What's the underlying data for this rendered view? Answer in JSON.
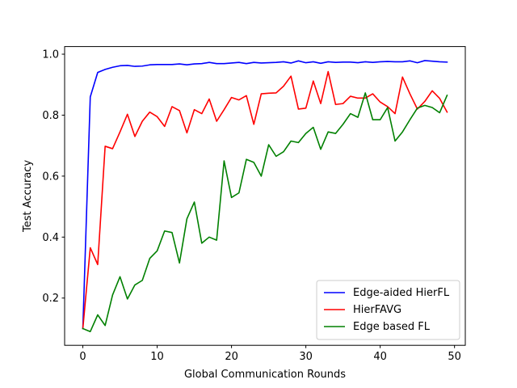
{
  "chart_data": {
    "type": "line",
    "xlabel": "Global Communication Rounds",
    "ylabel": "Test Accuracy",
    "xlim": [
      -2.45,
      51.45
    ],
    "ylim": [
      0.045,
      1.025
    ],
    "xticks": [
      0,
      10,
      20,
      30,
      40,
      50
    ],
    "yticks": [
      0.2,
      0.4,
      0.6,
      0.8,
      1.0
    ],
    "xtick_labels": [
      "0",
      "10",
      "20",
      "30",
      "40",
      "50"
    ],
    "ytick_labels": [
      "0.2",
      "0.4",
      "0.6",
      "0.8",
      "1.0"
    ],
    "grid": false,
    "legend_position": "lower-right",
    "x": [
      0,
      1,
      2,
      3,
      4,
      5,
      6,
      7,
      8,
      9,
      10,
      11,
      12,
      13,
      14,
      15,
      16,
      17,
      18,
      19,
      20,
      21,
      22,
      23,
      24,
      25,
      26,
      27,
      28,
      29,
      30,
      31,
      32,
      33,
      34,
      35,
      36,
      37,
      38,
      39,
      40,
      41,
      42,
      43,
      44,
      45,
      46,
      47,
      48,
      49
    ],
    "series": [
      {
        "name": "Edge-aided HierFL",
        "color": "#0000ff",
        "values": [
          0.1,
          0.86,
          0.94,
          0.95,
          0.957,
          0.962,
          0.963,
          0.96,
          0.961,
          0.965,
          0.966,
          0.966,
          0.966,
          0.968,
          0.965,
          0.968,
          0.969,
          0.973,
          0.969,
          0.969,
          0.971,
          0.973,
          0.969,
          0.973,
          0.971,
          0.972,
          0.973,
          0.975,
          0.971,
          0.978,
          0.972,
          0.975,
          0.97,
          0.975,
          0.973,
          0.974,
          0.974,
          0.972,
          0.975,
          0.973,
          0.975,
          0.976,
          0.975,
          0.975,
          0.978,
          0.972,
          0.979,
          0.977,
          0.975,
          0.974
        ]
      },
      {
        "name": "HierFAVG",
        "color": "#ff0000",
        "values": [
          0.1,
          0.365,
          0.31,
          0.698,
          0.69,
          0.745,
          0.803,
          0.73,
          0.78,
          0.81,
          0.795,
          0.763,
          0.828,
          0.815,
          0.742,
          0.818,
          0.805,
          0.853,
          0.78,
          0.818,
          0.858,
          0.85,
          0.864,
          0.77,
          0.87,
          0.872,
          0.873,
          0.895,
          0.928,
          0.82,
          0.823,
          0.912,
          0.838,
          0.943,
          0.835,
          0.838,
          0.862,
          0.856,
          0.856,
          0.87,
          0.843,
          0.828,
          0.805,
          0.925,
          0.87,
          0.82,
          0.845,
          0.88,
          0.855,
          0.81
        ]
      },
      {
        "name": "Edge based FL",
        "color": "#008000",
        "values": [
          0.1,
          0.09,
          0.145,
          0.11,
          0.21,
          0.27,
          0.197,
          0.243,
          0.258,
          0.33,
          0.355,
          0.42,
          0.415,
          0.315,
          0.46,
          0.515,
          0.38,
          0.4,
          0.39,
          0.65,
          0.53,
          0.545,
          0.655,
          0.645,
          0.6,
          0.703,
          0.665,
          0.68,
          0.715,
          0.71,
          0.74,
          0.76,
          0.688,
          0.745,
          0.74,
          0.77,
          0.805,
          0.793,
          0.873,
          0.785,
          0.785,
          0.825,
          0.715,
          0.745,
          0.785,
          0.823,
          0.832,
          0.825,
          0.808,
          0.865
        ]
      }
    ]
  }
}
